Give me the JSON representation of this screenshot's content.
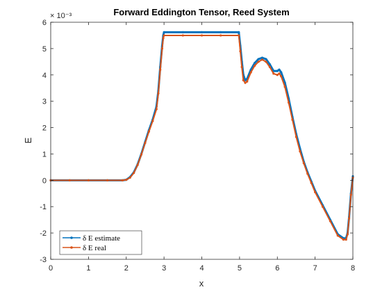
{
  "chart_data": {
    "type": "line",
    "title": "Forward Eddington Tensor, Reed System",
    "xlabel": "x",
    "ylabel": "E",
    "xlim": [
      0,
      8
    ],
    "ylim": [
      -3,
      6
    ],
    "y_exponent_label": "× 10⁻³",
    "xticks": [
      "0",
      "1",
      "2",
      "3",
      "4",
      "5",
      "6",
      "7",
      "8"
    ],
    "yticks": [
      "-3",
      "-2",
      "-1",
      "0",
      "1",
      "2",
      "3",
      "4",
      "5",
      "6"
    ],
    "legend_position": "bottom-left",
    "grid": false,
    "series": [
      {
        "name": "δ E estimate",
        "color": "#0072BD",
        "x": [
          0,
          0.5,
          1,
          1.5,
          1.9,
          2.0,
          2.1,
          2.2,
          2.3,
          2.4,
          2.5,
          2.6,
          2.7,
          2.8,
          2.85,
          2.9,
          2.95,
          2.98,
          3.0,
          3.5,
          4.0,
          4.5,
          4.98,
          5.02,
          5.06,
          5.1,
          5.15,
          5.2,
          5.3,
          5.4,
          5.5,
          5.6,
          5.7,
          5.8,
          5.9,
          6.0,
          6.05,
          6.1,
          6.2,
          6.3,
          6.4,
          6.5,
          6.6,
          6.7,
          6.8,
          6.9,
          7.0,
          7.2,
          7.4,
          7.6,
          7.75,
          7.82,
          7.86,
          7.9,
          7.95,
          8.0
        ],
        "y": [
          0,
          0,
          0,
          0,
          0,
          0.02,
          0.12,
          0.3,
          0.6,
          1.0,
          1.45,
          1.9,
          2.3,
          2.8,
          3.4,
          4.3,
          5.1,
          5.5,
          5.62,
          5.62,
          5.62,
          5.62,
          5.62,
          5.1,
          4.5,
          4.0,
          3.8,
          3.85,
          4.2,
          4.45,
          4.6,
          4.65,
          4.6,
          4.4,
          4.15,
          4.15,
          4.2,
          4.1,
          3.7,
          3.1,
          2.4,
          1.75,
          1.2,
          0.7,
          0.3,
          -0.05,
          -0.4,
          -0.95,
          -1.5,
          -2.05,
          -2.2,
          -2.2,
          -2.0,
          -1.4,
          -0.5,
          0.15
        ]
      },
      {
        "name": "δ E real",
        "color": "#D95319",
        "x": [
          0,
          0.5,
          1,
          1.5,
          1.9,
          2.0,
          2.1,
          2.2,
          2.3,
          2.4,
          2.5,
          2.6,
          2.7,
          2.8,
          2.85,
          2.9,
          2.95,
          2.98,
          3.0,
          3.5,
          4.0,
          4.5,
          4.98,
          5.02,
          5.06,
          5.1,
          5.15,
          5.2,
          5.3,
          5.4,
          5.5,
          5.6,
          5.7,
          5.8,
          5.9,
          6.0,
          6.05,
          6.1,
          6.2,
          6.3,
          6.4,
          6.5,
          6.6,
          6.7,
          6.8,
          6.9,
          7.0,
          7.2,
          7.4,
          7.6,
          7.75,
          7.82,
          7.86,
          7.9,
          7.95,
          8.0
        ],
        "y": [
          0,
          0,
          0,
          0,
          0,
          0.02,
          0.1,
          0.28,
          0.58,
          0.98,
          1.42,
          1.85,
          2.25,
          2.7,
          3.3,
          4.2,
          5.0,
          5.4,
          5.5,
          5.5,
          5.5,
          5.5,
          5.5,
          4.9,
          4.3,
          3.8,
          3.7,
          3.75,
          4.1,
          4.35,
          4.5,
          4.58,
          4.5,
          4.3,
          4.05,
          4.0,
          4.05,
          3.95,
          3.55,
          2.95,
          2.3,
          1.65,
          1.1,
          0.65,
          0.25,
          -0.1,
          -0.45,
          -1.0,
          -1.55,
          -2.1,
          -2.25,
          -2.25,
          -2.05,
          -1.45,
          -0.55,
          0.1
        ]
      }
    ]
  }
}
